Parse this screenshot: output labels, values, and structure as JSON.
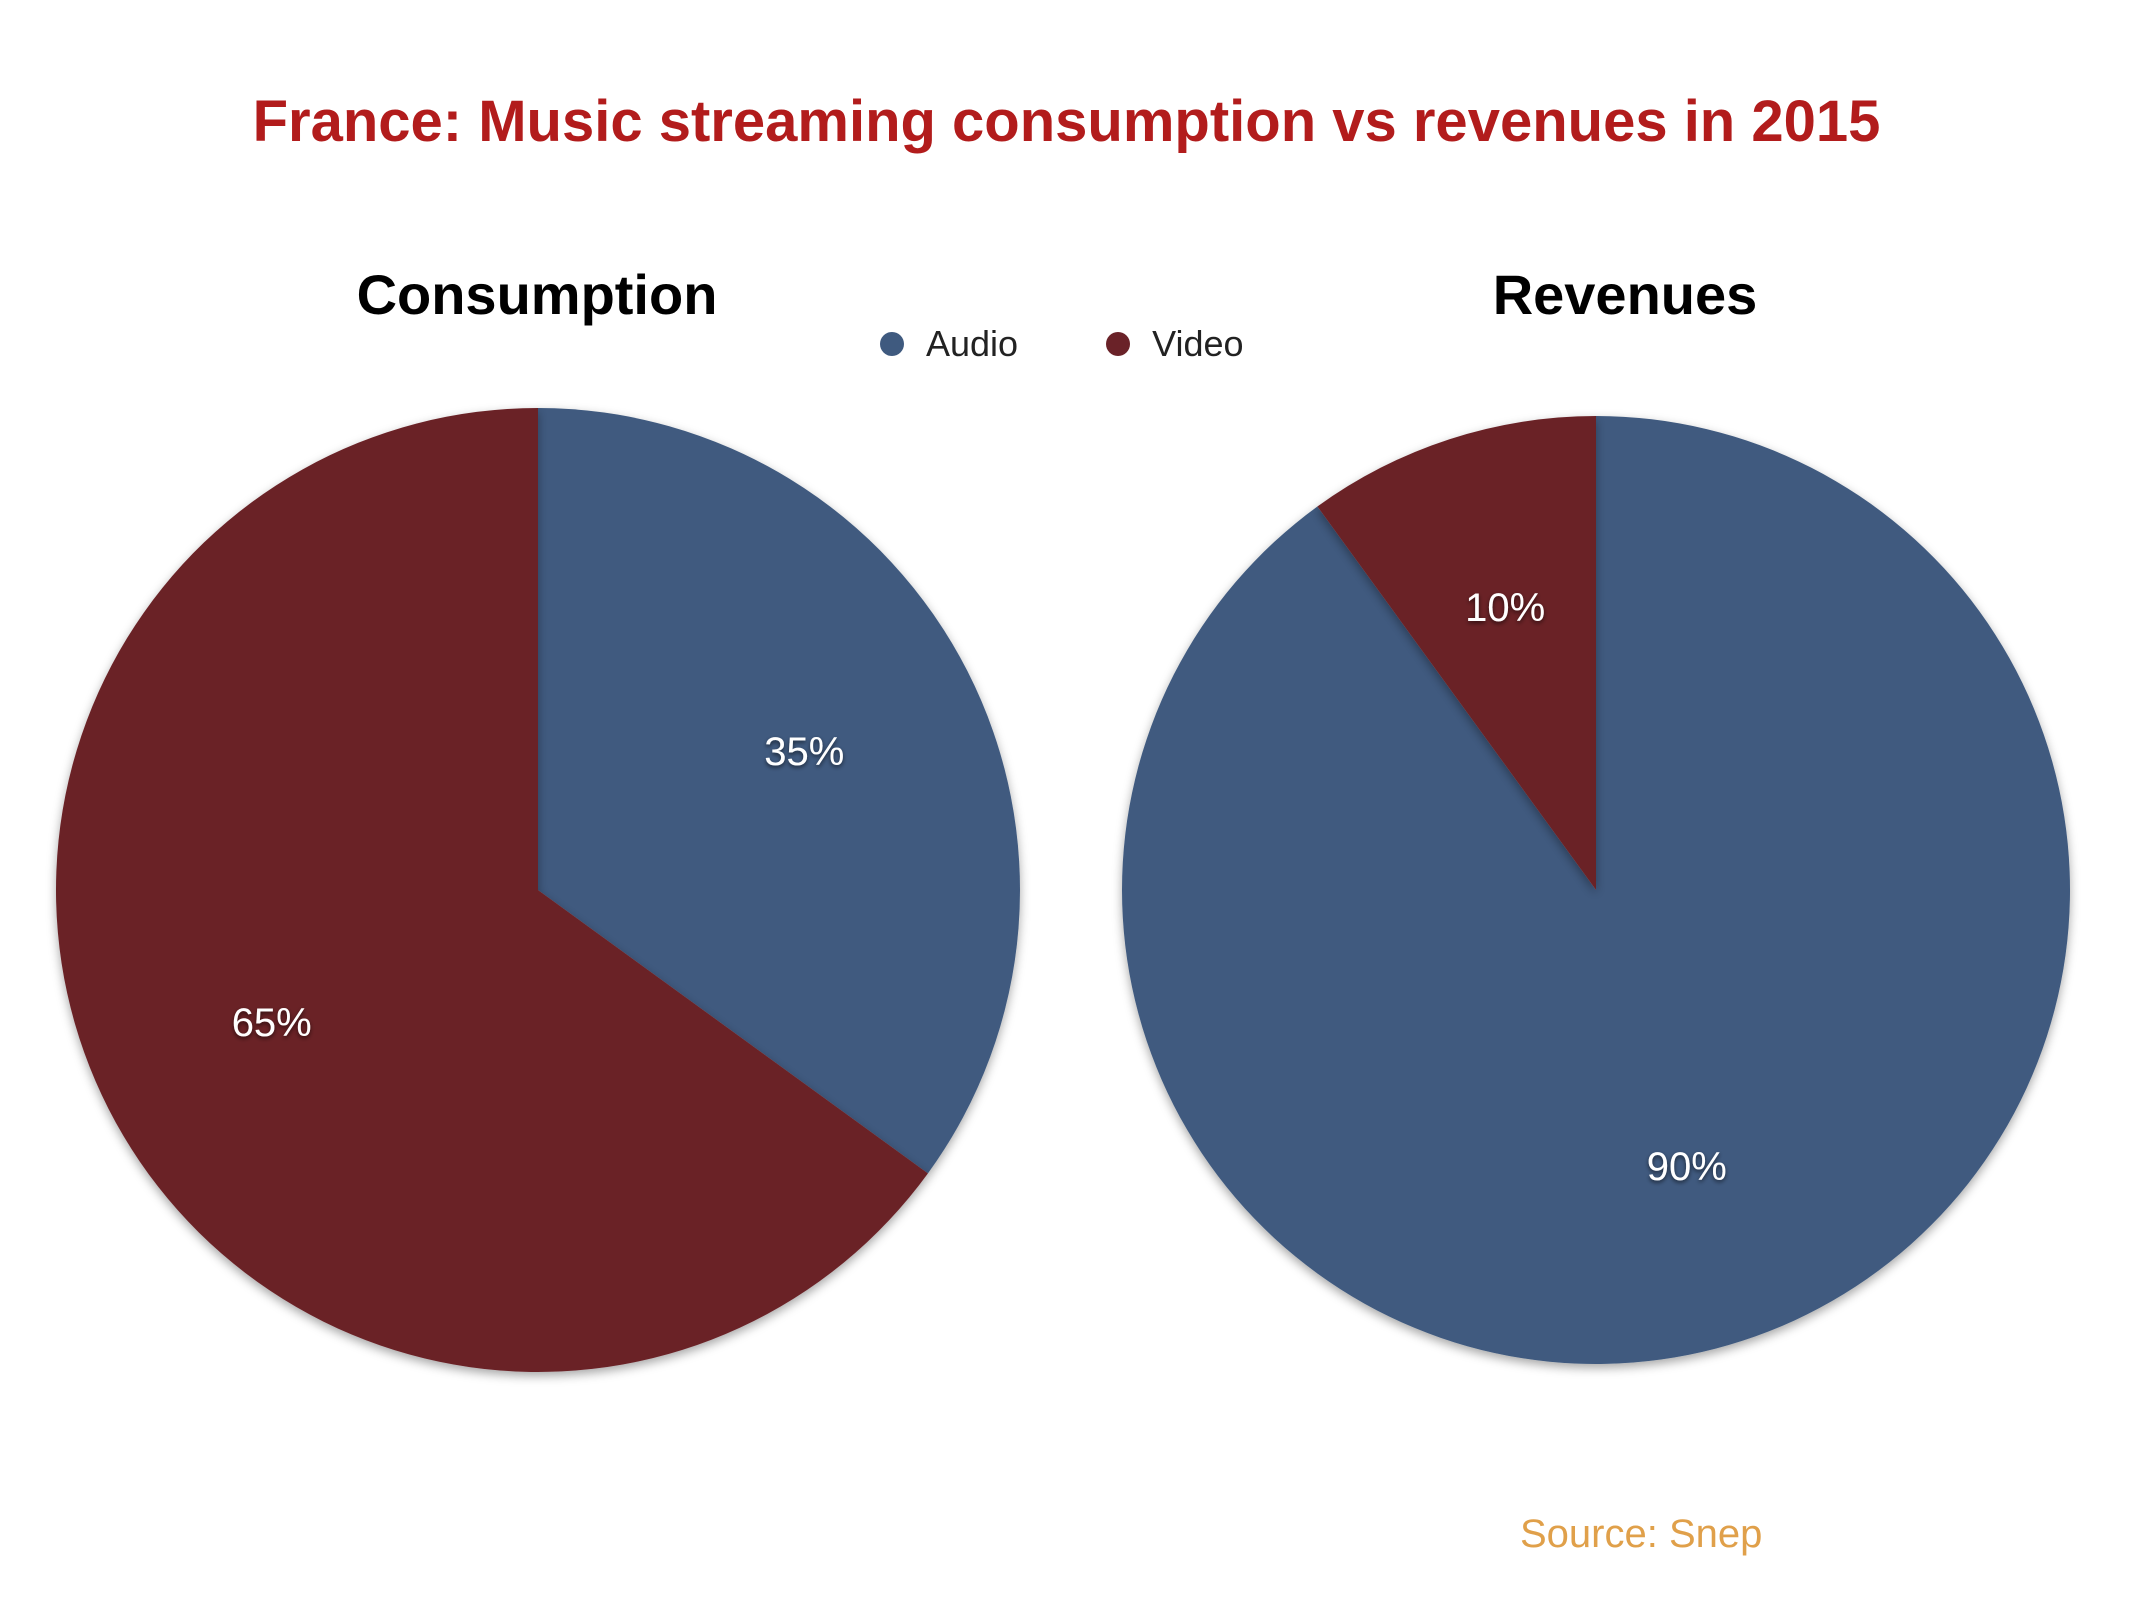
{
  "title": "France: Music streaming consumption vs revenues in 2015",
  "legend": [
    {
      "name": "Audio",
      "color": "#3f5a7f"
    },
    {
      "name": "Video",
      "color": "#6a2228"
    }
  ],
  "source": "Source: Snep",
  "chart_data": [
    {
      "type": "pie",
      "title": "Consumption",
      "slices": [
        {
          "name": "Audio",
          "value": 35,
          "label": "35%",
          "color": "#3f5a7f"
        },
        {
          "name": "Video",
          "value": 65,
          "label": "65%",
          "color": "#6a2228"
        }
      ]
    },
    {
      "type": "pie",
      "title": "Revenues",
      "slices": [
        {
          "name": "Audio",
          "value": 90,
          "label": "90%",
          "color": "#3f5a7f"
        },
        {
          "name": "Video",
          "value": 10,
          "label": "10%",
          "color": "#6a2228"
        }
      ]
    }
  ]
}
